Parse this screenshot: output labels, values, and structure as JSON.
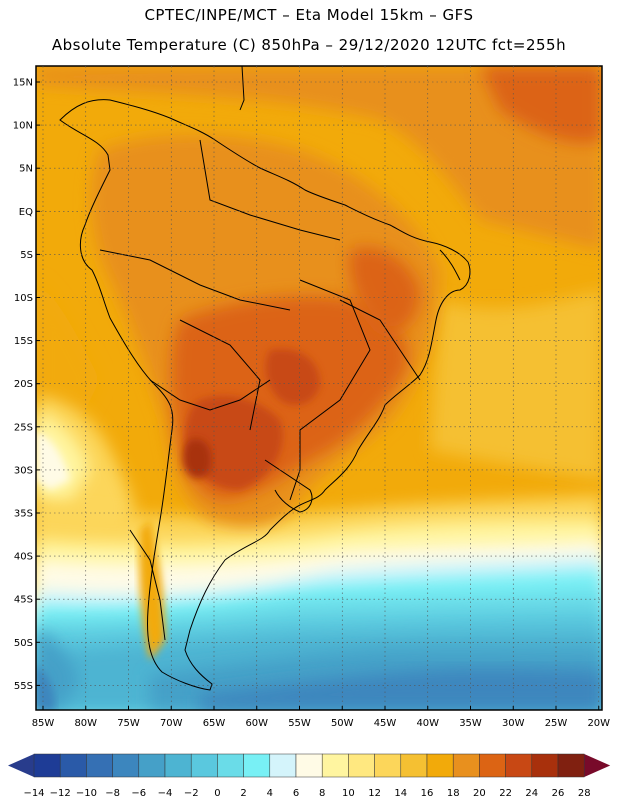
{
  "header": {
    "line1": "CPTEC/INPE/MCT –  Eta Model 15km – GFS",
    "line2": "Absolute Temperature (C) 850hPa – 29/12/2020 12UTC fct=255h"
  },
  "map": {
    "lat_labels": [
      "15N",
      "10N",
      "5N",
      "EQ",
      "5S",
      "10S",
      "15S",
      "20S",
      "25S",
      "30S",
      "35S",
      "40S",
      "45S",
      "50S",
      "55S"
    ],
    "lon_labels": [
      "85W",
      "80W",
      "75W",
      "70W",
      "65W",
      "60W",
      "55W",
      "50W",
      "45W",
      "40W",
      "35W",
      "30W",
      "25W",
      "20W"
    ]
  },
  "colorbar": {
    "labels": [
      "-14",
      "-12",
      "-10",
      "-8",
      "-6",
      "-4",
      "-2",
      "0",
      "2",
      "4",
      "6",
      "8",
      "10",
      "12",
      "14",
      "16",
      "18",
      "20",
      "22",
      "24",
      "26",
      "28"
    ],
    "colors": [
      "#1e3c96",
      "#2a5aa8",
      "#3570b4",
      "#3c86be",
      "#45a0c8",
      "#4db4d2",
      "#5ac8de",
      "#6adce8",
      "#78f0f5",
      "#d4f4fb",
      "#fffbe6",
      "#fff5a0",
      "#ffe880",
      "#fcd65a",
      "#f5c032",
      "#f2aa0a",
      "#e8901e",
      "#dc6414",
      "#c84814",
      "#a8300c",
      "#802010"
    ],
    "low_arrow_color": "#283c8c",
    "high_arrow_color": "#780a2a"
  }
}
